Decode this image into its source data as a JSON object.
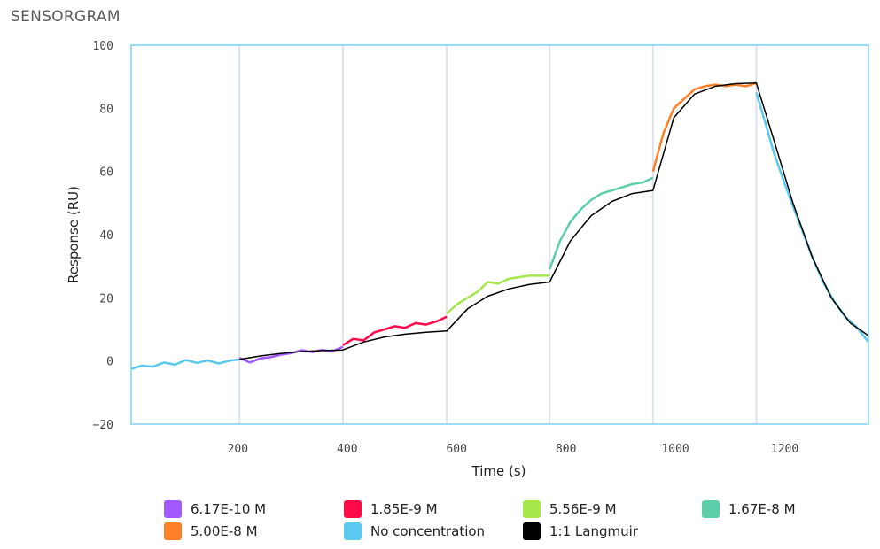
{
  "title": "SENSORGRAM",
  "chart_data": {
    "type": "line",
    "title": "SENSORGRAM",
    "xlabel": "Time (s)",
    "ylabel": "Response (RU)",
    "xlim": [
      5,
      1353
    ],
    "ylim": [
      -20,
      100
    ],
    "xticks": [
      200,
      400,
      600,
      800,
      1000,
      1200
    ],
    "yticks": [
      -20,
      0,
      20,
      40,
      60,
      80,
      100
    ],
    "injection_markers": [
      203,
      392,
      582,
      770,
      959,
      1148
    ],
    "legend_placement": "bottom",
    "series": [
      {
        "name": "No concentration",
        "color": "#5bc8ee",
        "x": [
          5,
          25,
          45,
          65,
          85,
          105,
          125,
          145,
          165,
          185,
          203
        ],
        "y": [
          -2.5,
          -1.5,
          -1.8,
          -0.5,
          -1.2,
          0.3,
          -0.6,
          0.2,
          -0.8,
          0.1,
          0.5
        ]
      },
      {
        "name": "6.17E-10 M",
        "color": "#a259ff",
        "x": [
          203,
          222,
          241,
          260,
          279,
          298,
          317,
          336,
          354,
          373,
          392
        ],
        "y": [
          1,
          -0.5,
          0.8,
          1.2,
          2.0,
          2.5,
          3.4,
          2.8,
          3.5,
          3.0,
          4.5
        ]
      },
      {
        "name": "1.85E-9 M",
        "color": "#ff0a47",
        "x": [
          392,
          411,
          430,
          449,
          468,
          487,
          506,
          525,
          544,
          563,
          582
        ],
        "y": [
          5,
          7,
          6.5,
          9,
          10,
          11,
          10.5,
          12,
          11.5,
          12.5,
          14
        ]
      },
      {
        "name": "5.56E-9 M",
        "color": "#a6e84a",
        "x": [
          582,
          601,
          620,
          639,
          657,
          676,
          695,
          714,
          732,
          751,
          770
        ],
        "y": [
          15,
          18,
          20,
          22,
          25,
          24.5,
          26,
          26.5,
          27,
          27,
          27
        ]
      },
      {
        "name": "1.67E-8 M",
        "color": "#5ccfaa",
        "x": [
          770,
          789,
          808,
          827,
          846,
          865,
          884,
          903,
          921,
          940,
          959
        ],
        "y": [
          29,
          38,
          44,
          48,
          51,
          53,
          54,
          55,
          56,
          56.5,
          58
        ]
      },
      {
        "name": "5.00E-8 M",
        "color": "#ff7f27",
        "x": [
          959,
          978,
          997,
          1016,
          1035,
          1054,
          1073,
          1092,
          1110,
          1129,
          1148
        ],
        "y": [
          60,
          72,
          80,
          83,
          86,
          87,
          87.5,
          87,
          87.5,
          87,
          88
        ]
      },
      {
        "name": "No concentration",
        "color": "#5bc8ee",
        "x": [
          1148,
          1165,
          1180,
          1200,
          1215,
          1235,
          1250,
          1270,
          1290,
          1310,
          1330,
          1353
        ],
        "y": [
          85,
          75,
          66,
          56,
          49,
          40,
          33,
          25,
          19,
          14,
          11,
          6
        ]
      },
      {
        "name": "1:1 Langmuir",
        "color": "#000000",
        "x": [
          203,
          241,
          279,
          317,
          354,
          392,
          430,
          468,
          506,
          544,
          582,
          620,
          657,
          695,
          732,
          770,
          808,
          846,
          884,
          921,
          959,
          997,
          1035,
          1073,
          1110,
          1148,
          1180,
          1215,
          1250,
          1285,
          1320,
          1353
        ],
        "y": [
          0.5,
          1.6,
          2.4,
          3.0,
          3.3,
          3.5,
          6.0,
          7.6,
          8.5,
          9.1,
          9.5,
          16.5,
          20.5,
          22.8,
          24.2,
          25,
          38,
          46,
          50.5,
          53,
          54,
          77,
          84.5,
          87,
          87.8,
          88,
          70,
          50,
          33,
          20,
          12,
          8
        ]
      }
    ]
  },
  "legend": [
    {
      "label": "6.17E-10 M",
      "color": "#a259ff"
    },
    {
      "label": "1.85E-9 M",
      "color": "#ff0a47"
    },
    {
      "label": "5.56E-9 M",
      "color": "#a6e84a"
    },
    {
      "label": "1.67E-8 M",
      "color": "#5ccfaa"
    },
    {
      "label": "5.00E-8 M",
      "color": "#ff7f27"
    },
    {
      "label": "No concentration",
      "color": "#5bc8ee"
    },
    {
      "label": "1:1 Langmuir",
      "color": "#000000"
    }
  ]
}
